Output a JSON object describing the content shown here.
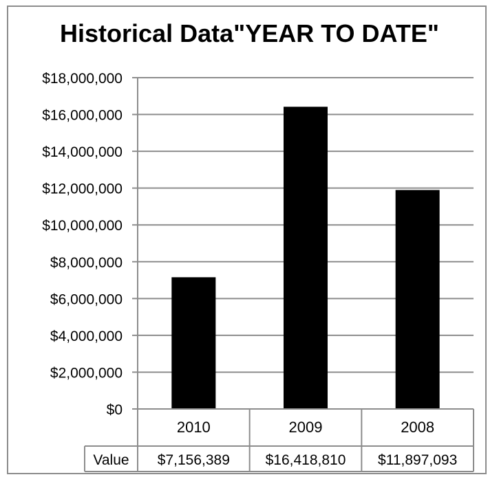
{
  "chart_data": {
    "type": "bar",
    "title": "Historical Data\"YEAR TO DATE\"",
    "xlabel": "",
    "ylabel": "",
    "categories": [
      "2010",
      "2009",
      "2008"
    ],
    "series": [
      {
        "name": "Value",
        "values": [
          7156389,
          16418810,
          11897093
        ]
      }
    ],
    "value_labels": [
      "$7,156,389",
      "$16,418,810",
      "$11,897,093"
    ],
    "ylim": [
      0,
      18000000
    ],
    "y_ticks": [
      0,
      2000000,
      4000000,
      6000000,
      8000000,
      10000000,
      12000000,
      14000000,
      16000000,
      18000000
    ],
    "y_tick_labels": [
      "$0",
      "$2,000,000",
      "$4,000,000",
      "$6,000,000",
      "$8,000,000",
      "$10,000,000",
      "$12,000,000",
      "$14,000,000",
      "$16,000,000",
      "$18,000,000"
    ],
    "grid": true,
    "data_table": true,
    "bar_color": "#000000",
    "grid_color": "#8c8c8c"
  }
}
